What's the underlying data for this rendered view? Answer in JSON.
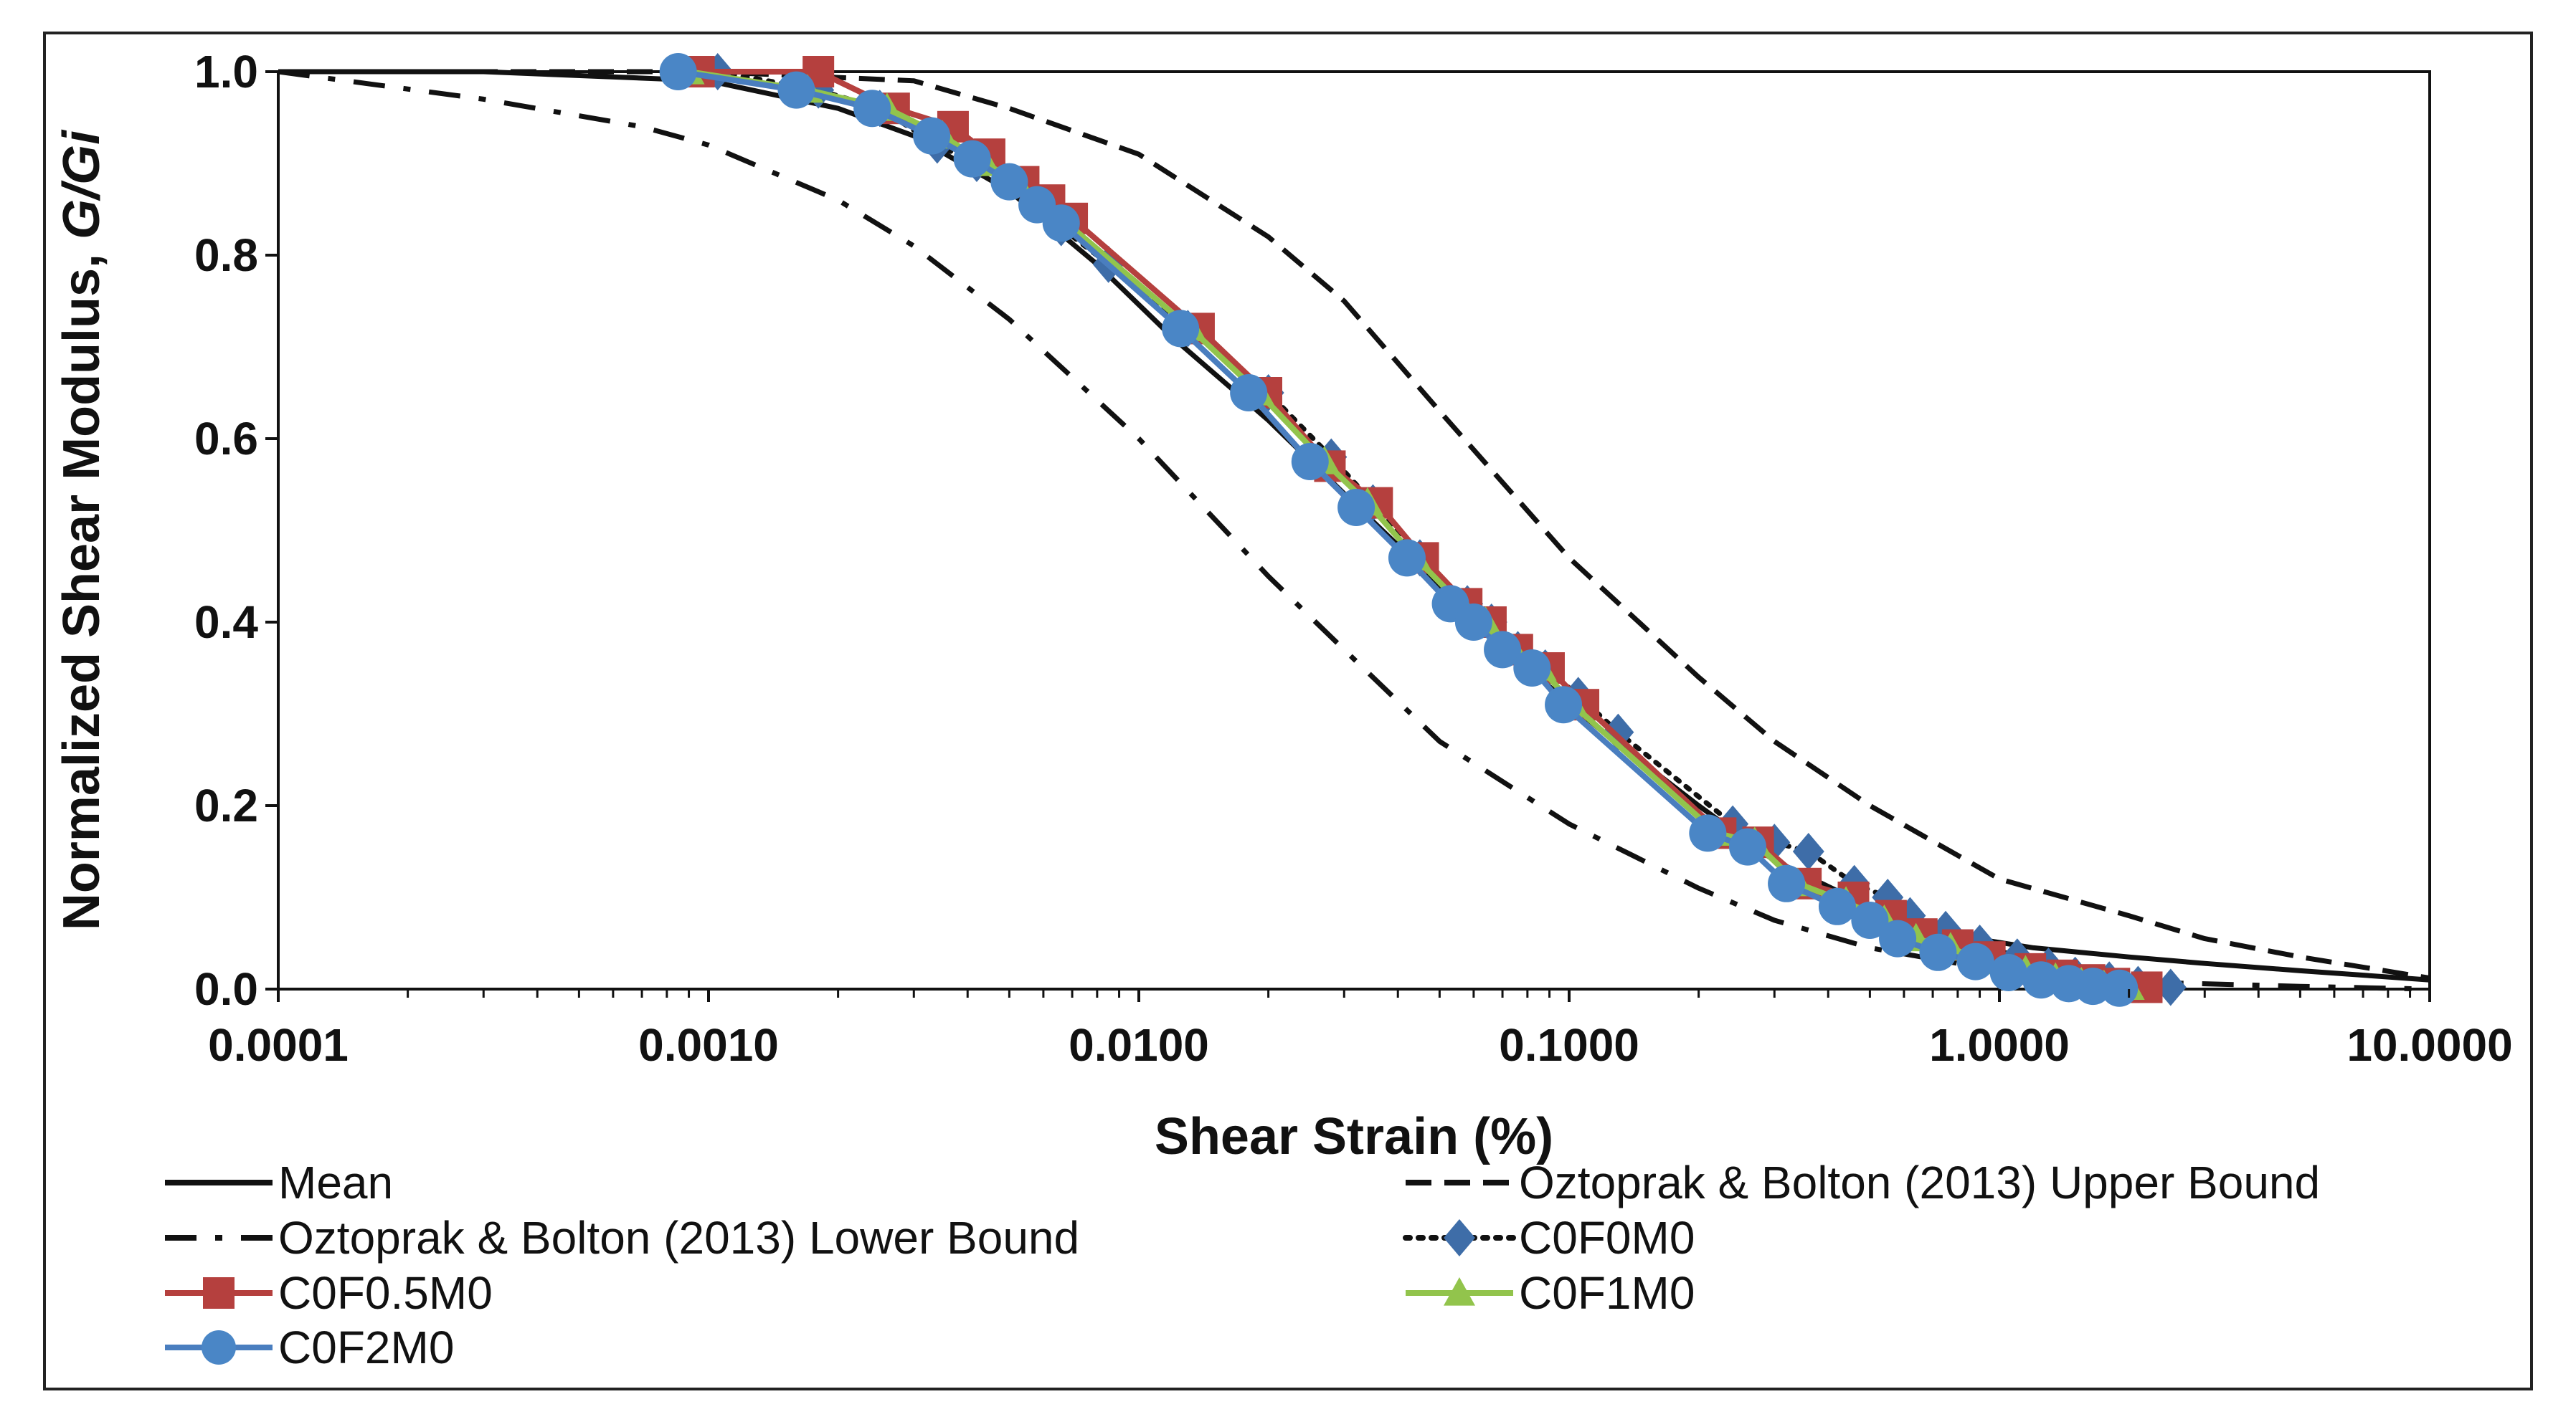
{
  "chart_data": {
    "type": "line",
    "title": "",
    "xlabel": "Shear Strain (%)",
    "ylabel_main": "Normalized Shear Modulus, ",
    "ylabel_italic": "G/Gi",
    "xscale": "log",
    "xlim": [
      0.0001,
      10
    ],
    "ylim": [
      0,
      1
    ],
    "grid": false,
    "legend_position": "bottom",
    "x_ticks": [
      {
        "value": 0.0001,
        "label": "0.0001"
      },
      {
        "value": 0.001,
        "label": "0.0010"
      },
      {
        "value": 0.01,
        "label": "0.0100"
      },
      {
        "value": 0.1,
        "label": "0.1000"
      },
      {
        "value": 1,
        "label": "1.0000"
      },
      {
        "value": 10,
        "label": "10.0000"
      }
    ],
    "y_ticks": [
      {
        "value": 0,
        "label": "0.0"
      },
      {
        "value": 0.2,
        "label": "0.2"
      },
      {
        "value": 0.4,
        "label": "0.4"
      },
      {
        "value": 0.6,
        "label": "0.6"
      },
      {
        "value": 0.8,
        "label": "0.8"
      },
      {
        "value": 1,
        "label": "1.0"
      }
    ],
    "series": [
      {
        "name": "Mean",
        "key": "mean",
        "style": "solid",
        "color": "#111111",
        "marker": "none",
        "x": [
          0.0001,
          0.0003,
          0.001,
          0.002,
          0.003,
          0.005,
          0.008,
          0.012,
          0.02,
          0.03,
          0.05,
          0.08,
          0.12,
          0.2,
          0.3,
          0.5,
          0.8,
          1.2,
          2,
          3,
          5,
          10
        ],
        "y": [
          1.0,
          1.0,
          0.99,
          0.96,
          0.93,
          0.87,
          0.79,
          0.71,
          0.62,
          0.54,
          0.44,
          0.35,
          0.28,
          0.2,
          0.14,
          0.09,
          0.058,
          0.045,
          0.035,
          0.028,
          0.02,
          0.01
        ]
      },
      {
        "name": "Oztoprak & Bolton (2013) Upper Bound",
        "key": "upper",
        "style": "dashed",
        "color": "#111111",
        "marker": "none",
        "x": [
          0.0001,
          0.001,
          0.003,
          0.005,
          0.01,
          0.02,
          0.03,
          0.05,
          0.1,
          0.2,
          0.3,
          0.5,
          1.0,
          2.0,
          3.0,
          5.0,
          10.0
        ],
        "y": [
          1.0,
          1.0,
          0.99,
          0.96,
          0.91,
          0.82,
          0.75,
          0.63,
          0.47,
          0.34,
          0.27,
          0.2,
          0.12,
          0.08,
          0.055,
          0.035,
          0.012
        ]
      },
      {
        "name": "Oztoprak & Bolton (2013) Lower Bound",
        "key": "lower",
        "style": "dashdot",
        "color": "#111111",
        "marker": "none",
        "x": [
          0.0001,
          0.0003,
          0.0007,
          0.001,
          0.002,
          0.003,
          0.005,
          0.01,
          0.02,
          0.03,
          0.05,
          0.1,
          0.2,
          0.3,
          0.5,
          1.0,
          2.0,
          5.0,
          10.0
        ],
        "y": [
          1.0,
          0.97,
          0.94,
          0.92,
          0.86,
          0.81,
          0.73,
          0.6,
          0.45,
          0.37,
          0.27,
          0.18,
          0.11,
          0.075,
          0.045,
          0.02,
          0.008,
          0.003,
          0.0
        ]
      },
      {
        "name": "C0F0M0",
        "key": "c0f0m0",
        "style": "dotted",
        "color": "#111111",
        "marker": "diamond",
        "marker_color": "#3E6DA8",
        "x": [
          0.00105,
          0.0018,
          0.0025,
          0.0034,
          0.0042,
          0.005,
          0.0058,
          0.0066,
          0.0085,
          0.013,
          0.02,
          0.028,
          0.035,
          0.045,
          0.058,
          0.066,
          0.076,
          0.088,
          0.105,
          0.13,
          0.24,
          0.3,
          0.36,
          0.46,
          0.55,
          0.62,
          0.75,
          0.9,
          1.1,
          1.3,
          1.5,
          1.8,
          2.1,
          2.5
        ],
        "y": [
          1.0,
          0.98,
          0.96,
          0.92,
          0.9,
          0.88,
          0.86,
          0.83,
          0.79,
          0.72,
          0.65,
          0.58,
          0.53,
          0.47,
          0.42,
          0.4,
          0.37,
          0.35,
          0.32,
          0.28,
          0.18,
          0.16,
          0.15,
          0.115,
          0.1,
          0.08,
          0.065,
          0.05,
          0.035,
          0.025,
          0.015,
          0.01,
          0.005,
          0.002
        ]
      },
      {
        "name": "C0F0.5M0",
        "key": "c0f05m0",
        "style": "solid",
        "color": "#B5403E",
        "marker": "square",
        "marker_color": "#B5403E",
        "x": [
          0.00095,
          0.0018,
          0.0027,
          0.0037,
          0.0045,
          0.0054,
          0.0062,
          0.007,
          0.0138,
          0.0198,
          0.0278,
          0.0358,
          0.0458,
          0.0578,
          0.0658,
          0.0758,
          0.0898,
          0.108,
          0.225,
          0.275,
          0.355,
          0.458,
          0.56,
          0.66,
          0.8,
          0.95,
          1.18,
          1.4,
          1.62,
          1.85,
          2.2
        ],
        "y": [
          1.0,
          1.0,
          0.96,
          0.94,
          0.91,
          0.88,
          0.86,
          0.84,
          0.72,
          0.65,
          0.57,
          0.53,
          0.47,
          0.42,
          0.4,
          0.37,
          0.35,
          0.31,
          0.17,
          0.16,
          0.115,
          0.1,
          0.08,
          0.06,
          0.048,
          0.035,
          0.022,
          0.015,
          0.01,
          0.006,
          0.002
        ]
      },
      {
        "name": "C0F1M0",
        "key": "c0f1m0",
        "style": "solid",
        "color": "#92C44C",
        "marker": "triangle",
        "marker_color": "#92C44C",
        "x": [
          0.0009,
          0.0017,
          0.0026,
          0.0035,
          0.0044,
          0.0052,
          0.006,
          0.0068,
          0.0132,
          0.019,
          0.027,
          0.034,
          0.044,
          0.056,
          0.064,
          0.074,
          0.086,
          0.102,
          0.22,
          0.27,
          0.34,
          0.44,
          0.54,
          0.64,
          0.77,
          0.92,
          1.15,
          1.35,
          1.55,
          1.75,
          2.0
        ],
        "y": [
          1.0,
          0.98,
          0.96,
          0.93,
          0.9,
          0.88,
          0.855,
          0.835,
          0.72,
          0.65,
          0.575,
          0.53,
          0.47,
          0.42,
          0.4,
          0.37,
          0.35,
          0.31,
          0.17,
          0.16,
          0.115,
          0.095,
          0.075,
          0.055,
          0.045,
          0.03,
          0.02,
          0.012,
          0.007,
          0.004,
          0.002
        ]
      },
      {
        "name": "C0F2M0",
        "key": "c0f2m0",
        "style": "solid",
        "color": "#4A7EBF",
        "marker": "circle",
        "marker_color": "#4A86C6",
        "x": [
          0.00085,
          0.0016,
          0.0024,
          0.0033,
          0.0041,
          0.005,
          0.0058,
          0.0066,
          0.0125,
          0.018,
          0.025,
          0.032,
          0.042,
          0.053,
          0.06,
          0.07,
          0.082,
          0.097,
          0.21,
          0.26,
          0.32,
          0.42,
          0.5,
          0.58,
          0.72,
          0.88,
          1.05,
          1.25,
          1.45,
          1.65,
          1.9
        ],
        "y": [
          1.0,
          0.98,
          0.96,
          0.93,
          0.905,
          0.88,
          0.855,
          0.835,
          0.72,
          0.65,
          0.575,
          0.525,
          0.47,
          0.42,
          0.4,
          0.37,
          0.35,
          0.31,
          0.17,
          0.155,
          0.115,
          0.09,
          0.075,
          0.055,
          0.04,
          0.03,
          0.018,
          0.01,
          0.006,
          0.003,
          0.001
        ]
      }
    ]
  }
}
